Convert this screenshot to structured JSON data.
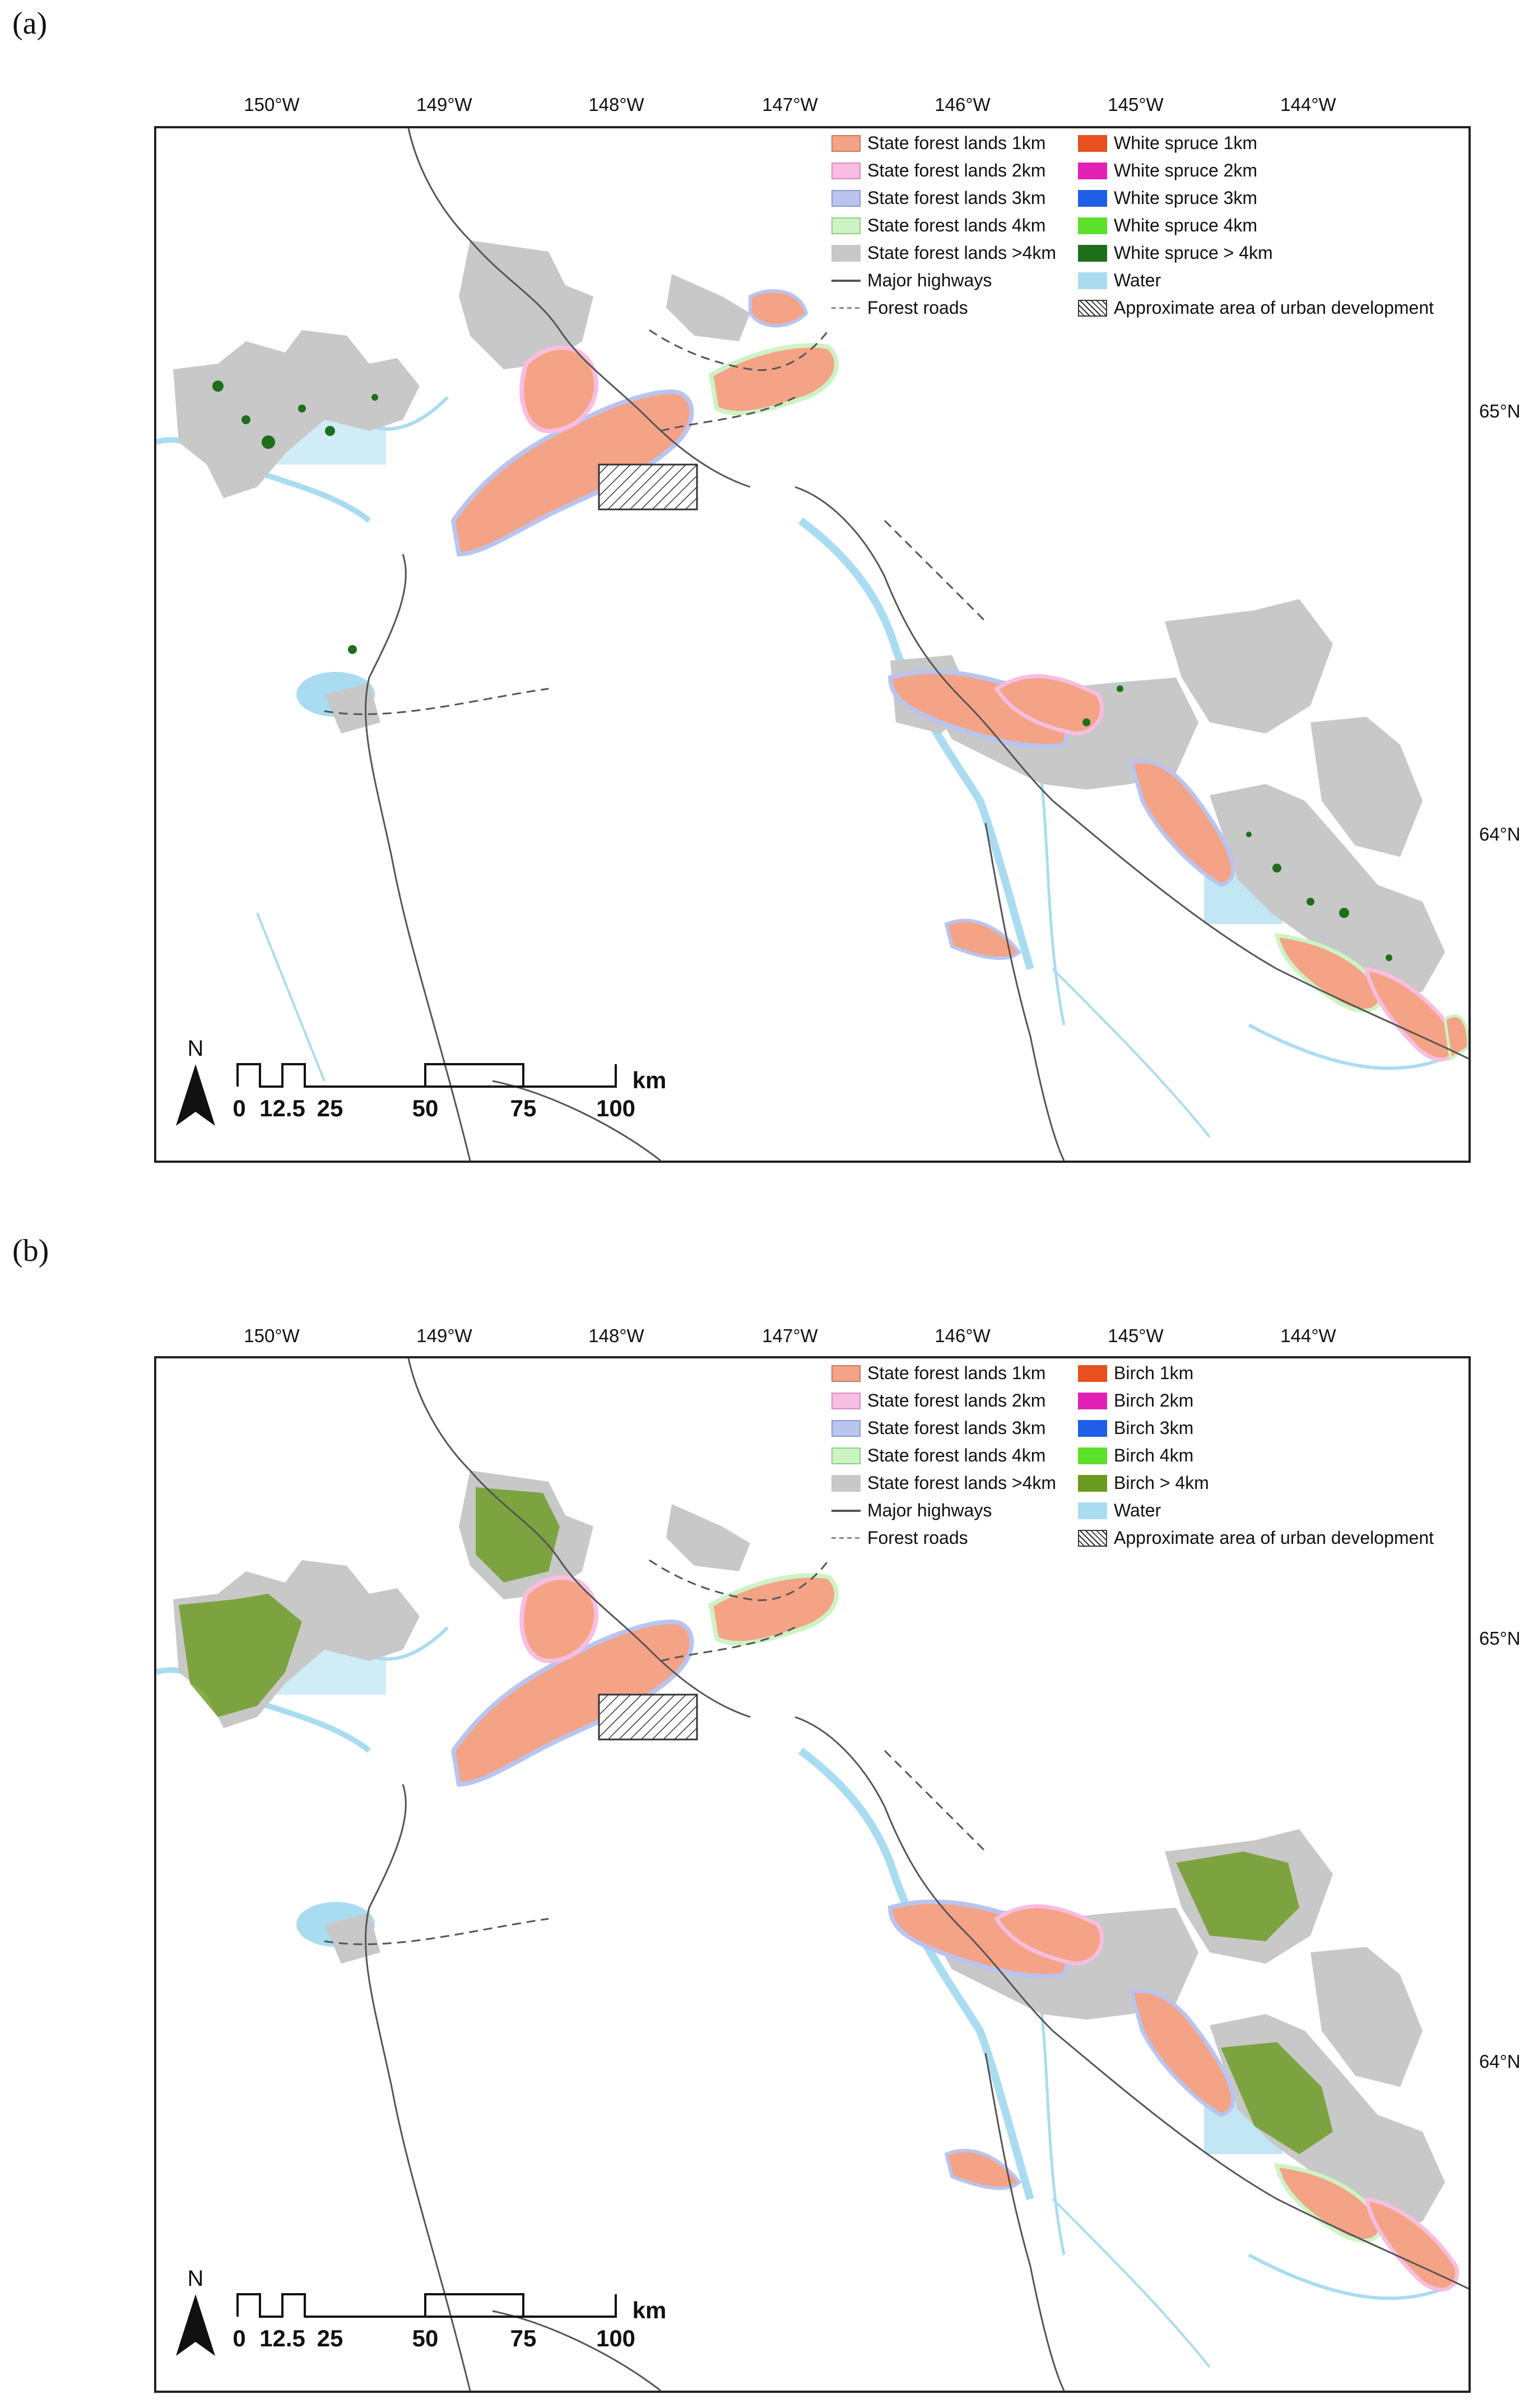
{
  "panels": [
    {
      "label": "(a)",
      "legend": {
        "left": [
          {
            "label": "State forest lands 1km",
            "color": "#f4a386",
            "type": "fill"
          },
          {
            "label": "State forest lands 2km",
            "color": "#f8bde0",
            "type": "fill"
          },
          {
            "label": "State forest lands 3km",
            "color": "#b9c4ef",
            "type": "fill"
          },
          {
            "label": "State forest lands 4km",
            "color": "#cdf3c4",
            "type": "fill"
          },
          {
            "label": "State forest lands >4km",
            "color": "#c8c8c8",
            "type": "fill"
          },
          {
            "label": "Major highways",
            "color": "#555555",
            "type": "line"
          },
          {
            "label": "Forest roads",
            "color": "#555555",
            "type": "dash"
          }
        ],
        "right": [
          {
            "label": "White spruce 1km",
            "color": "#e8501f",
            "type": "fill"
          },
          {
            "label": "White spruce 2km",
            "color": "#e320b4",
            "type": "fill"
          },
          {
            "label": "White spruce 3km",
            "color": "#1f5fe8",
            "type": "fill"
          },
          {
            "label": "White spruce 4km",
            "color": "#5de02a",
            "type": "fill"
          },
          {
            "label": "White spruce > 4km",
            "color": "#1e6e1a",
            "type": "fill"
          },
          {
            "label": "Water",
            "color": "#a9dcf0",
            "type": "fill"
          },
          {
            "label": "Approximate area of urban development",
            "color": "#333333",
            "type": "hatch"
          }
        ]
      }
    },
    {
      "label": "(b)",
      "legend": {
        "left": [
          {
            "label": "State forest lands 1km",
            "color": "#f4a386",
            "type": "fill"
          },
          {
            "label": "State forest lands 2km",
            "color": "#f8bde0",
            "type": "fill"
          },
          {
            "label": "State forest lands 3km",
            "color": "#b9c4ef",
            "type": "fill"
          },
          {
            "label": "State forest lands 4km",
            "color": "#cdf3c4",
            "type": "fill"
          },
          {
            "label": "State forest lands >4km",
            "color": "#c8c8c8",
            "type": "fill"
          },
          {
            "label": "Major highways",
            "color": "#555555",
            "type": "line"
          },
          {
            "label": "Forest roads",
            "color": "#555555",
            "type": "dash"
          }
        ],
        "right": [
          {
            "label": "Birch 1km",
            "color": "#e8501f",
            "type": "fill"
          },
          {
            "label": "Birch 2km",
            "color": "#e320b4",
            "type": "fill"
          },
          {
            "label": "Birch 3km",
            "color": "#1f5fe8",
            "type": "fill"
          },
          {
            "label": "Birch 4km",
            "color": "#5de02a",
            "type": "fill"
          },
          {
            "label": "Birch > 4km",
            "color": "#6a9a1f",
            "type": "fill"
          },
          {
            "label": "Water",
            "color": "#a9dcf0",
            "type": "fill"
          },
          {
            "label": "Approximate area of urban development",
            "color": "#333333",
            "type": "hatch"
          }
        ]
      }
    }
  ],
  "lon_ticks": [
    "150°W",
    "149°W",
    "148°W",
    "147°W",
    "146°W",
    "145°W",
    "144°W"
  ],
  "lat_ticks": [
    "65°N",
    "64°N"
  ],
  "north_label": "N",
  "scale": {
    "labels": [
      "0",
      "12.5",
      "25",
      "50",
      "75",
      "100"
    ],
    "unit": "km"
  },
  "colors": {
    "frame": "#222222",
    "state_forest_gray": "#c8c8c8",
    "water": "#a9dcf0",
    "road": "#555555",
    "buffer_1km": "#f4a386",
    "buffer_2km": "#f8bde0",
    "buffer_3km": "#b9c4ef",
    "buffer_4km": "#cdf3c4",
    "species_dark_a": "#1e6e1a",
    "species_dark_b": "#6a9a1f"
  }
}
